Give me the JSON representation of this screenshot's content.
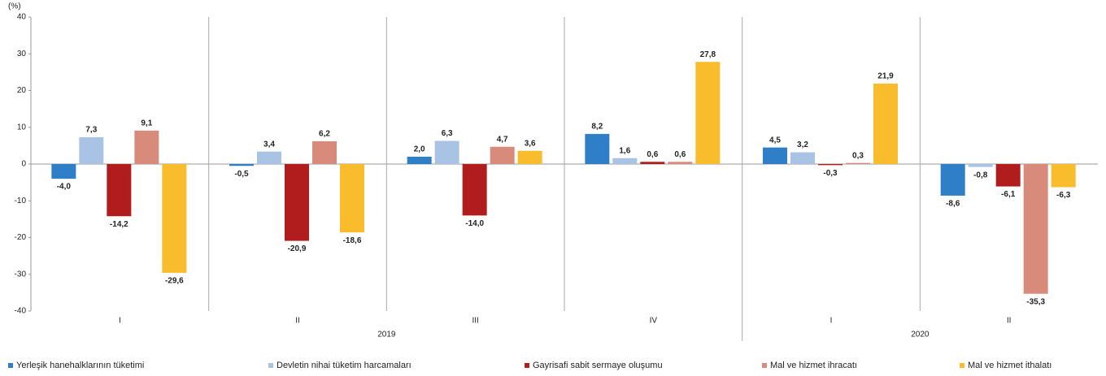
{
  "chart_data": {
    "type": "bar",
    "y_unit_label": "(%)",
    "groups": [
      {
        "label": "2019",
        "categories": [
          "I",
          "II",
          "III",
          "IV"
        ]
      },
      {
        "label": "2020",
        "categories": [
          "I",
          "II"
        ]
      }
    ],
    "series": [
      {
        "name": "Yerleşik hanehalklarının tüketimi",
        "color": "#2e7fc8",
        "values": [
          -4.0,
          -0.5,
          2.0,
          8.2,
          4.5,
          -8.6
        ],
        "value_labels": [
          "-4,0",
          "-0,5",
          "2,0",
          "8,2",
          "4,5",
          "-8,6"
        ]
      },
      {
        "name": "Devletin nihai tüketim harcamaları",
        "color": "#a9c3e5",
        "values": [
          7.3,
          3.4,
          6.3,
          1.6,
          3.2,
          -0.8
        ],
        "value_labels": [
          "7,3",
          "3,4",
          "6,3",
          "1,6",
          "3,2",
          "-0,8"
        ]
      },
      {
        "name": "Gayrisafi sabit sermaye oluşumu",
        "color": "#b11d1d",
        "values": [
          -14.2,
          -20.9,
          -14.0,
          0.6,
          -0.3,
          -6.1
        ],
        "value_labels": [
          "-14,2",
          "-20,9",
          "-14,0",
          "0,6",
          "-0,3",
          "-6,1"
        ]
      },
      {
        "name": "Mal ve hizmet ihracatı",
        "color": "#d98b7b",
        "values": [
          9.1,
          6.2,
          4.7,
          0.6,
          0.3,
          -35.3
        ],
        "value_labels": [
          "9,1",
          "6,2",
          "4,7",
          "0,6",
          "0,3",
          "-35,3"
        ]
      },
      {
        "name": "Mal ve hizmet ithalatı",
        "color": "#f8bc2c",
        "values": [
          -29.6,
          -18.6,
          3.6,
          27.8,
          21.9,
          -6.3
        ],
        "value_labels": [
          "-29,6",
          "-18,6",
          "3,6",
          "27,8",
          "21,9",
          "-6,3"
        ]
      }
    ],
    "ylim": [
      -40,
      40
    ],
    "yticks": [
      -40,
      -30,
      -20,
      -10,
      0,
      10,
      20,
      30,
      40
    ],
    "legend": "bottom"
  }
}
